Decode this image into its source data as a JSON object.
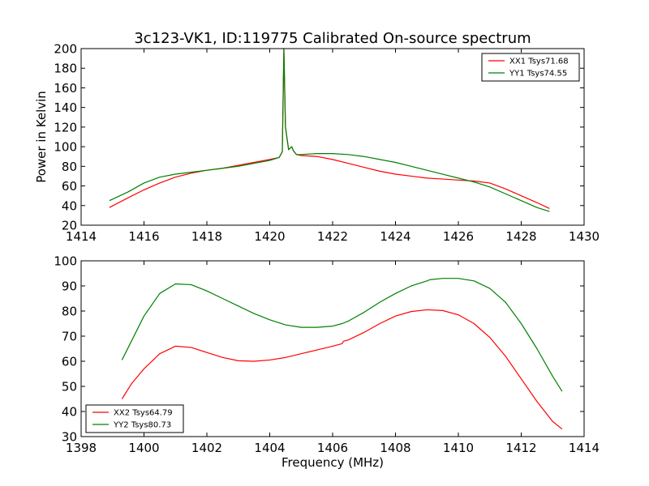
{
  "chart_data": [
    {
      "type": "line",
      "title": "3c123-VK1, ID:119775 Calibrated On-source spectrum",
      "xlabel": "",
      "ylabel": "Power in Kelvin",
      "xlim": [
        1414,
        1430
      ],
      "ylim": [
        20,
        200
      ],
      "xticks": [
        "1414",
        "1416",
        "1418",
        "1420",
        "1422",
        "1424",
        "1426",
        "1428",
        "1430"
      ],
      "yticks": [
        "20",
        "40",
        "60",
        "80",
        "100",
        "120",
        "140",
        "160",
        "180",
        "200"
      ],
      "grid": false,
      "legend_position": "top-right",
      "series": [
        {
          "name": "XX1 Tsys71.68",
          "color": "#ff0000",
          "x": [
            1414.9,
            1415.5,
            1416,
            1416.5,
            1417,
            1417.5,
            1418,
            1418.5,
            1419,
            1419.5,
            1420,
            1420.3,
            1420.4,
            1420.45,
            1420.5,
            1420.6,
            1420.7,
            1420.75,
            1420.85,
            1421,
            1421.5,
            1422,
            1422.5,
            1423,
            1423.5,
            1424,
            1424.5,
            1425,
            1425.5,
            1426,
            1426.5,
            1427,
            1427.5,
            1428,
            1428.5,
            1428.9
          ],
          "y": [
            38,
            48,
            56,
            63,
            69,
            73,
            76,
            78,
            81,
            84,
            87,
            89,
            95,
            200,
            120,
            97,
            100,
            96,
            92,
            91,
            90,
            87,
            83,
            79,
            75,
            72,
            70,
            68,
            67,
            66,
            65,
            63,
            57,
            50,
            43,
            37
          ]
        },
        {
          "name": "YY1 Tsys74.55",
          "color": "#008000",
          "x": [
            1414.9,
            1415.5,
            1416,
            1416.5,
            1417,
            1417.5,
            1418,
            1418.5,
            1419,
            1419.5,
            1420,
            1420.3,
            1420.4,
            1420.45,
            1420.5,
            1420.6,
            1420.7,
            1420.75,
            1420.85,
            1421,
            1421.5,
            1422,
            1422.5,
            1423,
            1423.5,
            1424,
            1424.5,
            1425,
            1425.5,
            1426,
            1426.5,
            1427,
            1427.5,
            1428,
            1428.5,
            1428.9
          ],
          "y": [
            45,
            54,
            63,
            69,
            72,
            74,
            76,
            78,
            80,
            83,
            86,
            89,
            95,
            200,
            120,
            97,
            100,
            96,
            92,
            92,
            93,
            93,
            92,
            90,
            87,
            84,
            80,
            76,
            72,
            68,
            64,
            59,
            52,
            45,
            38,
            34
          ]
        }
      ]
    },
    {
      "type": "line",
      "title": "",
      "xlabel": "Frequency (MHz)",
      "ylabel": "",
      "xlim": [
        1398,
        1414
      ],
      "ylim": [
        30,
        100
      ],
      "xticks": [
        "1398",
        "1400",
        "1402",
        "1404",
        "1406",
        "1408",
        "1410",
        "1412",
        "1414"
      ],
      "yticks": [
        "30",
        "40",
        "50",
        "60",
        "70",
        "80",
        "90",
        "100"
      ],
      "grid": false,
      "legend_position": "bottom-left",
      "series": [
        {
          "name": "XX2 Tsys64.79",
          "color": "#ff0000",
          "x": [
            1399.3,
            1399.6,
            1400,
            1400.5,
            1401,
            1401.5,
            1402,
            1402.5,
            1403,
            1403.5,
            1404,
            1404.5,
            1405,
            1405.5,
            1406,
            1406.3,
            1406.35,
            1406.5,
            1407,
            1407.5,
            1408,
            1408.5,
            1409,
            1409.5,
            1410,
            1410.5,
            1411,
            1411.5,
            1412,
            1412.5,
            1413,
            1413.3
          ],
          "y": [
            45,
            51,
            57,
            63,
            66,
            65.5,
            63.5,
            61.5,
            60.2,
            60,
            60.5,
            61.5,
            63,
            64.5,
            66,
            67,
            68,
            68.5,
            71.5,
            75,
            78,
            79.8,
            80.5,
            80.2,
            78.5,
            75,
            69.5,
            62,
            53,
            44,
            36,
            33
          ]
        },
        {
          "name": "YY2 Tsys80.73",
          "color": "#008000",
          "x": [
            1399.3,
            1399.6,
            1400,
            1400.5,
            1401,
            1401.5,
            1402,
            1402.5,
            1403,
            1403.5,
            1404,
            1404.5,
            1405,
            1405.5,
            1406,
            1406.3,
            1406.5,
            1407,
            1407.5,
            1408,
            1408.5,
            1409,
            1409.1,
            1409.5,
            1410,
            1410.5,
            1411,
            1411.5,
            1412,
            1412.5,
            1413,
            1413.3
          ],
          "y": [
            60.5,
            68,
            78,
            87,
            90.8,
            90.5,
            88,
            85,
            82,
            79,
            76.5,
            74.5,
            73.5,
            73.5,
            74,
            75,
            76,
            79.5,
            83.5,
            87,
            90,
            92,
            92.5,
            93,
            93,
            92,
            89,
            83.5,
            75,
            65,
            54,
            48
          ]
        }
      ]
    }
  ]
}
